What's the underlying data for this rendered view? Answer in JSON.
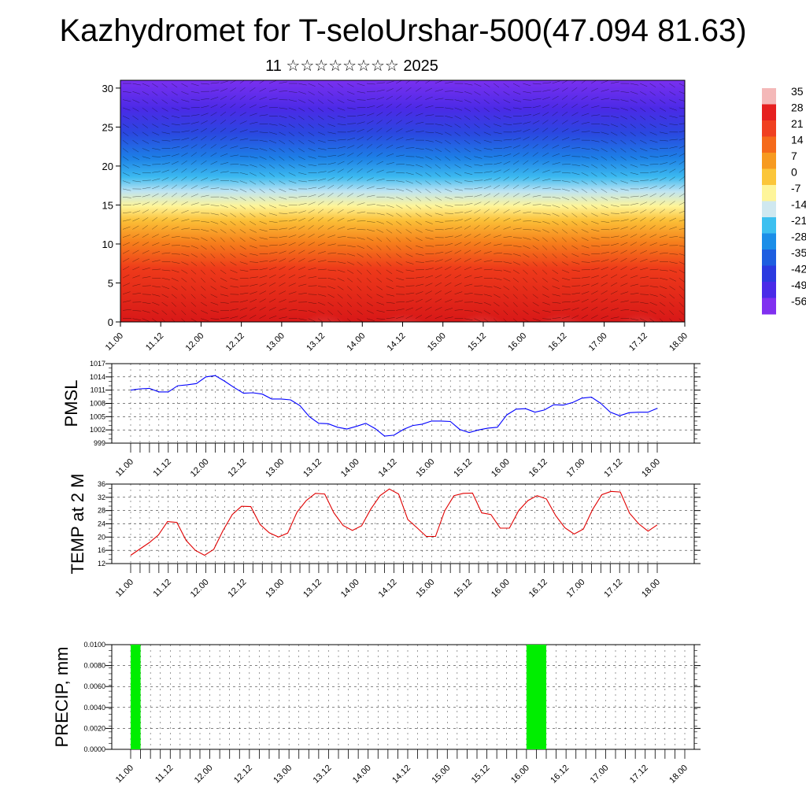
{
  "title": "Kazhydromet for T-seloUrshar-500(47.094 81.63)",
  "subtitle": "11 ☆☆☆☆☆☆☆☆ 2025",
  "colorbar": {
    "labels": [
      "35",
      "28",
      "21",
      "14",
      "7",
      "0",
      "-7",
      "-14",
      "-21",
      "-28",
      "-35",
      "-42",
      "-49",
      "-56"
    ],
    "colors": [
      "#f4b8b8",
      "#e62020",
      "#f04020",
      "#f56a1a",
      "#f79a20",
      "#fbc63a",
      "#fef59a",
      "#cfe8f0",
      "#3cc0f0",
      "#1b8ee8",
      "#1e5ee0",
      "#2b3ae0",
      "#4a2ae8",
      "#8030f0"
    ]
  },
  "chart_data": [
    {
      "type": "heatmap",
      "name": "wind-temperature-profile",
      "title": "",
      "xlabel": "",
      "ylabel": "",
      "x_ticks": [
        "11.00",
        "11.12",
        "12.00",
        "12.12",
        "13.00",
        "13.12",
        "14.00",
        "14.12",
        "15.00",
        "15.12",
        "16.00",
        "16.12",
        "17.00",
        "17.12",
        "18.00"
      ],
      "y_ticks": [
        0,
        5,
        10,
        15,
        20,
        25,
        30
      ],
      "ylim": [
        0,
        31
      ],
      "color_range": [
        -56,
        35
      ],
      "description_of_field": "filled contours, warm near surface, cold aloft, with wind barbs"
    },
    {
      "type": "line",
      "name": "pmsl",
      "ylabel": "PMSL",
      "color": "#0000ff",
      "ylim": [
        999,
        1017
      ],
      "y_ticks": [
        999,
        1002,
        1005,
        1008,
        1011,
        1014,
        1017
      ],
      "x_ticks": [
        "11.00",
        "11.12",
        "12.00",
        "12.12",
        "13.00",
        "13.12",
        "14.00",
        "14.12",
        "15.00",
        "15.12",
        "16.00",
        "16.12",
        "17.00",
        "17.12",
        "18.00"
      ],
      "values": [
        1011,
        1011.3,
        1011.4,
        1010.6,
        1010.6,
        1012,
        1012.2,
        1012.5,
        1014,
        1014.3,
        1013,
        1011.6,
        1010.3,
        1010.4,
        1010.1,
        1009,
        1009,
        1008.8,
        1007.5,
        1005,
        1003.5,
        1003.4,
        1002.6,
        1002.2,
        1002.8,
        1003.5,
        1002.3,
        1000.6,
        1000.8,
        1002.1,
        1003,
        1003.3,
        1004,
        1004,
        1003.9,
        1002.1,
        1001.4,
        1002,
        1002.4,
        1002.6,
        1005.4,
        1006.7,
        1006.8,
        1006,
        1006.5,
        1007.7,
        1007.6,
        1008.2,
        1009.2,
        1009.4,
        1008,
        1006,
        1005.2,
        1005.9,
        1006,
        1006,
        1006.9
      ]
    },
    {
      "type": "line",
      "name": "temp-2m",
      "ylabel": "TEMP at 2 M",
      "color": "#e00000",
      "ylim": [
        12,
        36
      ],
      "y_ticks": [
        12,
        16,
        20,
        24,
        28,
        32,
        36
      ],
      "x_ticks": [
        "11.00",
        "11.12",
        "12.00",
        "12.12",
        "13.00",
        "13.12",
        "14.00",
        "14.12",
        "15.00",
        "15.12",
        "16.00",
        "16.12",
        "17.00",
        "17.12",
        "18.00"
      ],
      "values": [
        14.5,
        16.4,
        18.3,
        20.6,
        24.7,
        24.4,
        19,
        16,
        14.5,
        16.3,
        22,
        26.8,
        29.3,
        29.2,
        23.8,
        21.3,
        20,
        21.2,
        27.5,
        31,
        33.2,
        33,
        27.3,
        23.5,
        22,
        23.4,
        28.5,
        32.5,
        34.5,
        33,
        25.3,
        22.8,
        20.2,
        20.2,
        28,
        32.5,
        33.2,
        33.3,
        27.3,
        26.8,
        22.7,
        22.7,
        28,
        31,
        32.5,
        31.5,
        26.5,
        22.8,
        20.9,
        22.4,
        28.3,
        32.8,
        33.8,
        33.6,
        27.2,
        24,
        21.8,
        23.7
      ]
    },
    {
      "type": "bar",
      "name": "precip",
      "ylabel": "PRECIP, mm",
      "color": "#00ee00",
      "ylim": [
        0,
        0.01
      ],
      "y_ticks": [
        "0.0000",
        "0.0020",
        "0.0040",
        "0.0060",
        "0.0080",
        "0.0100"
      ],
      "x_ticks": [
        "11.00",
        "11.12",
        "12.00",
        "12.12",
        "13.00",
        "13.12",
        "14.00",
        "14.12",
        "15.00",
        "15.12",
        "16.00",
        "16.12",
        "17.00",
        "17.12",
        "18.00"
      ],
      "bars": [
        {
          "start_step": 0,
          "end_step": 1,
          "value": 0.01
        },
        {
          "start_step": 40,
          "end_step": 42,
          "value": 0.01
        }
      ]
    }
  ]
}
